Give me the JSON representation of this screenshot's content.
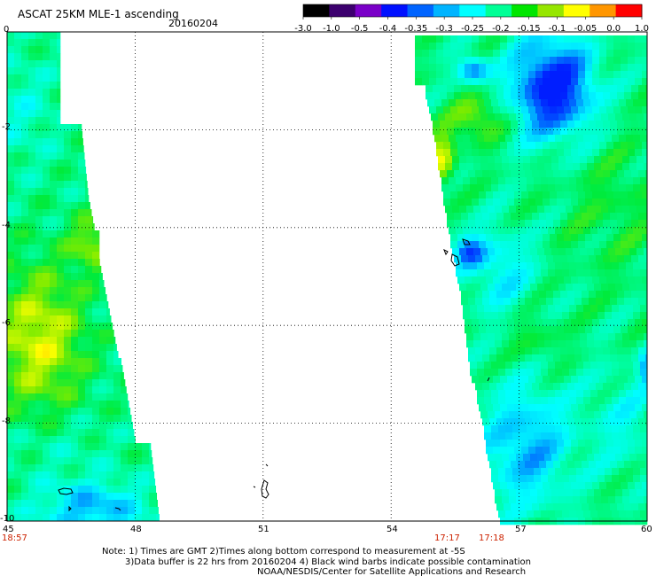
{
  "header": {
    "title": "ASCAT 25KM MLE-1 ascending",
    "date": "20160204"
  },
  "colorbar": {
    "labels": [
      "-3.0",
      "-1.0",
      "-0.5",
      "-0.4",
      "-0.35",
      "-0.3",
      "-0.25",
      "-0.2",
      "-0.15",
      "-0.1",
      "-0.05",
      "0.0",
      "1.0"
    ],
    "colors": [
      "#000000",
      "#3c006e",
      "#7a00c8",
      "#0010ff",
      "#0064ff",
      "#00b4ff",
      "#00ffff",
      "#00ff96",
      "#00e600",
      "#96e600",
      "#ffff00",
      "#ff9600",
      "#ff0000"
    ]
  },
  "axes": {
    "y_labels": [
      "0",
      "-2",
      "-4",
      "-6",
      "-8",
      "-10"
    ],
    "x_labels": [
      "45",
      "48",
      "51",
      "54",
      "57",
      "60"
    ]
  },
  "times": {
    "left": "18:57",
    "right1": "17:17",
    "right2": "17:18",
    "color": "#cc2200"
  },
  "footer": {
    "line1": "Note: 1) Times are GMT 2)Times along bottom correspond to measurement at -5S",
    "line2": "3)Data buffer is 22 hrs from 20160204 4) Black wind barbs indicate possible contamination",
    "line3": "NOAA/NESDIS/Center for Satellite Applications and Research"
  }
}
